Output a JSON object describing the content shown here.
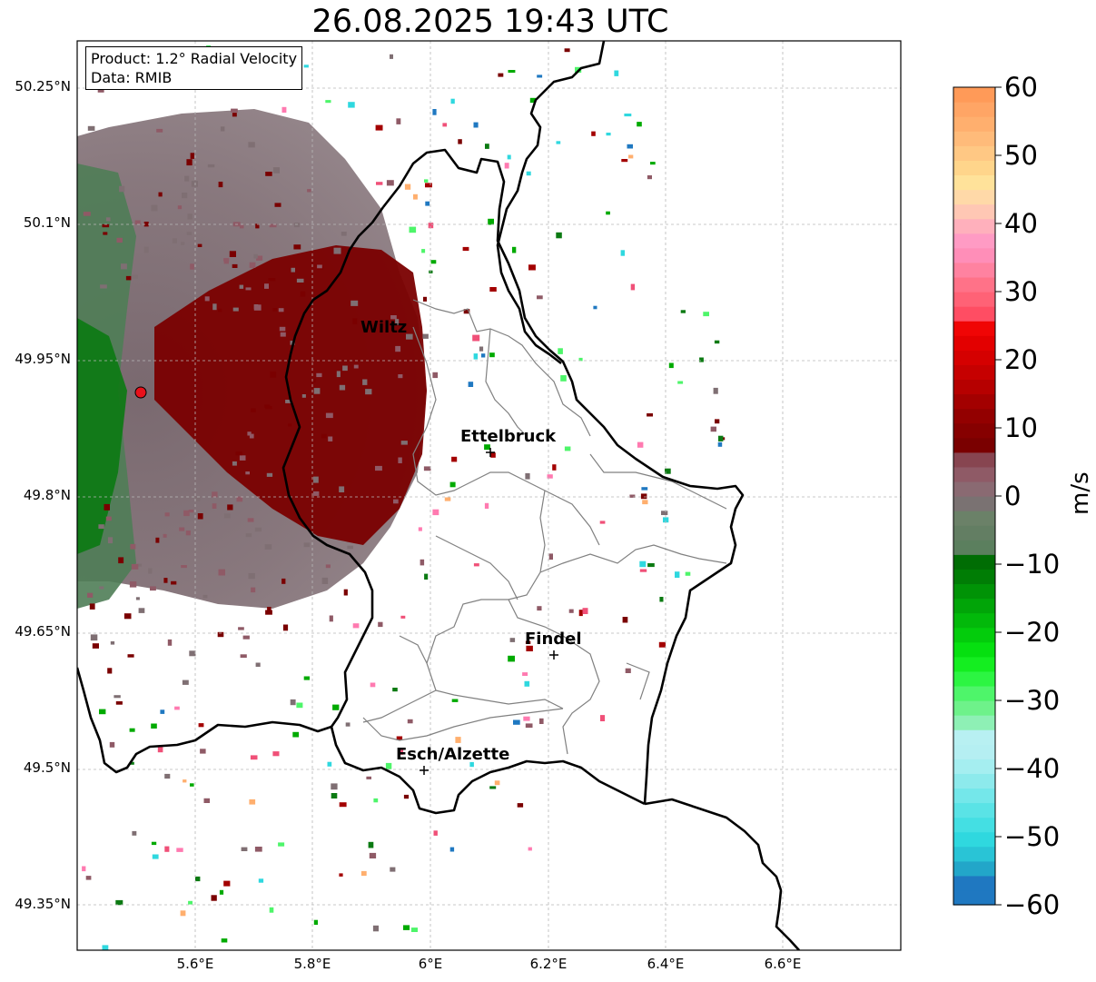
{
  "title": "26.08.2025 19:43 UTC",
  "info_box": {
    "product": "Product: 1.2° Radial Velocity",
    "data": "Data: RMIB"
  },
  "axes": {
    "lat_ticks": [
      "50.25°N",
      "50.1°N",
      "49.95°N",
      "49.8°N",
      "49.65°N",
      "49.5°N",
      "49.35°N"
    ],
    "lon_ticks": [
      "5.6°E",
      "5.8°E",
      "6°E",
      "6.2°E",
      "6.4°E",
      "6.6°E"
    ]
  },
  "cities": [
    {
      "name": "Wiltz",
      "lon": 5.93,
      "lat": 49.966
    },
    {
      "name": "Ettelbruck",
      "lon": 6.1,
      "lat": 49.85
    },
    {
      "name": "Findel",
      "lon": 6.21,
      "lat": 49.627
    },
    {
      "name": "Esch/Alzette",
      "lon": 5.99,
      "lat": 49.5
    }
  ],
  "radar_site": {
    "lon": 5.505,
    "lat": 49.914,
    "color": "#e8111b"
  },
  "colorbar": {
    "label": "m/s",
    "min": -60,
    "max": 60,
    "ticks": [
      "60",
      "50",
      "40",
      "30",
      "20",
      "10",
      "0",
      "−10",
      "−20",
      "−30",
      "−40",
      "−50",
      "−60"
    ]
  },
  "colors": {
    "near_zero": "#7f6f73",
    "inbound_dark": "#5a8560",
    "outbound_dark": "#780000",
    "accent_green": "#00aa00"
  }
}
